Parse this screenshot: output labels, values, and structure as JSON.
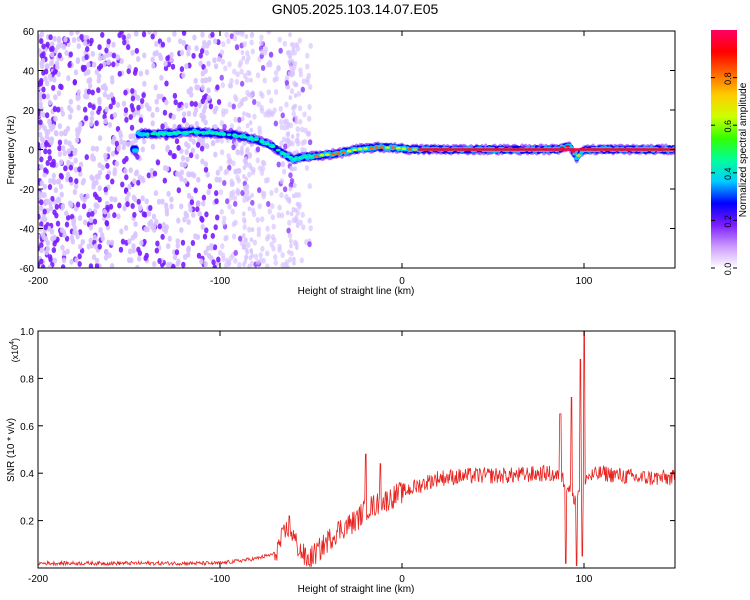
{
  "title": "GN05.2025.103.14.07.E05",
  "chart_data": [
    {
      "type": "heatmap",
      "xlabel": "Height of straight line (km)",
      "ylabel": "Frequency (Hz)",
      "xlim": [
        -200,
        150
      ],
      "ylim": [
        -60,
        60
      ],
      "x_ticks": [
        -200,
        -100,
        0,
        100
      ],
      "y_ticks": [
        -60,
        -40,
        -20,
        0,
        20,
        40,
        60
      ],
      "colorbar": {
        "label": "Normalized spectral amplitude",
        "range": [
          0,
          1
        ],
        "ticks": [
          "0.0",
          "0.2",
          "0.4",
          "0.6",
          "0.8"
        ],
        "colors": [
          "#ffffff",
          "#cc99ff",
          "#7a1cff",
          "#0000ff",
          "#00ccff",
          "#00ff99",
          "#33ff00",
          "#ccff00",
          "#ffcc00",
          "#ff6600",
          "#ff0000",
          "#ff0066"
        ]
      },
      "ridge": {
        "description_points": [
          [
            -145,
            8
          ],
          [
            -130,
            8
          ],
          [
            -115,
            9
          ],
          [
            -100,
            8
          ],
          [
            -90,
            7
          ],
          [
            -80,
            5
          ],
          [
            -72,
            2
          ],
          [
            -65,
            -2
          ],
          [
            -60,
            -5
          ],
          [
            -55,
            -4
          ],
          [
            -45,
            -3
          ],
          [
            -35,
            -2
          ],
          [
            -25,
            0
          ],
          [
            -15,
            1
          ],
          [
            -5,
            1
          ],
          [
            5,
            0
          ],
          [
            15,
            0
          ],
          [
            30,
            0
          ],
          [
            50,
            0
          ],
          [
            70,
            0
          ],
          [
            85,
            0
          ],
          [
            92,
            2
          ],
          [
            96,
            -4
          ],
          [
            100,
            0
          ],
          [
            150,
            0
          ]
        ]
      }
    },
    {
      "type": "line",
      "xlabel": "Height of straight line (km)",
      "ylabel": "SNR (10 * v/v)",
      "y_multiplier": "(x10",
      "y_multiplier_exp": "4",
      "xlim": [
        -200,
        150
      ],
      "ylim": [
        0,
        1.0
      ],
      "x_ticks": [
        -200,
        -100,
        0,
        100
      ],
      "y_ticks": [
        "0.2",
        "0.4",
        "0.6",
        "0.8",
        "1.0"
      ],
      "series_color": "#e8231f",
      "envelope": [
        [
          -200,
          0.02
        ],
        [
          -150,
          0.02
        ],
        [
          -100,
          0.02
        ],
        [
          -80,
          0.04
        ],
        [
          -70,
          0.06
        ],
        [
          -62,
          0.18
        ],
        [
          -58,
          0.1
        ],
        [
          -52,
          0.03
        ],
        [
          -45,
          0.08
        ],
        [
          -35,
          0.16
        ],
        [
          -25,
          0.2
        ],
        [
          -20,
          0.25
        ],
        [
          -10,
          0.28
        ],
        [
          0,
          0.32
        ],
        [
          10,
          0.35
        ],
        [
          20,
          0.38
        ],
        [
          40,
          0.39
        ],
        [
          60,
          0.39
        ],
        [
          80,
          0.4
        ],
        [
          88,
          0.38
        ],
        [
          95,
          0.3
        ],
        [
          100,
          0.38
        ],
        [
          110,
          0.4
        ],
        [
          130,
          0.38
        ],
        [
          150,
          0.38
        ]
      ],
      "peaks": [
        [
          -62,
          0.22
        ],
        [
          -20,
          0.48
        ],
        [
          -12,
          0.44
        ],
        [
          87,
          0.65
        ],
        [
          93,
          0.72
        ],
        [
          98,
          0.88
        ],
        [
          100,
          1.0
        ]
      ],
      "dips": [
        [
          90,
          0.02
        ],
        [
          96,
          0.01
        ],
        [
          99,
          0.05
        ]
      ]
    }
  ]
}
